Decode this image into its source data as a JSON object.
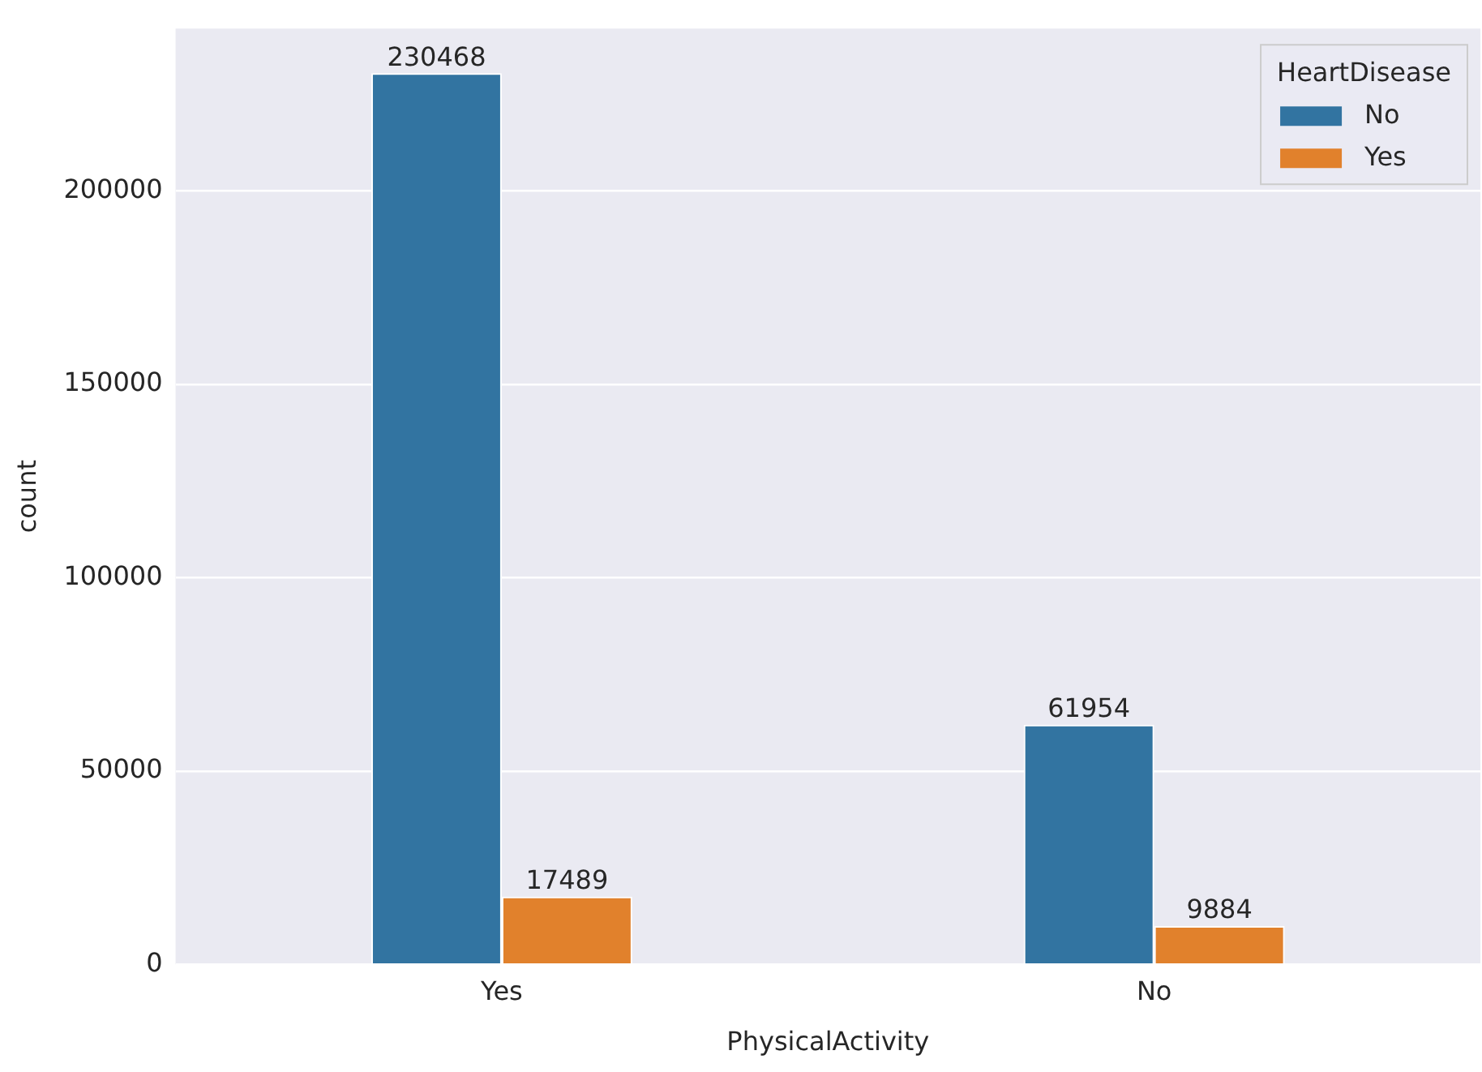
{
  "chart_data": {
    "type": "bar",
    "xlabel": "PhysicalActivity",
    "ylabel": "count",
    "legend_title": "HeartDisease",
    "categories": [
      "Yes",
      "No"
    ],
    "series": [
      {
        "name": "No",
        "color": "#3274a1",
        "values": [
          230468,
          61954
        ]
      },
      {
        "name": "Yes",
        "color": "#e1812c",
        "values": [
          17489,
          9884
        ]
      }
    ],
    "ylim": [
      0,
      242000
    ],
    "yticks": [
      0,
      50000,
      100000,
      150000,
      200000
    ],
    "grid": "y",
    "legend": "top right",
    "data_labels": true
  }
}
